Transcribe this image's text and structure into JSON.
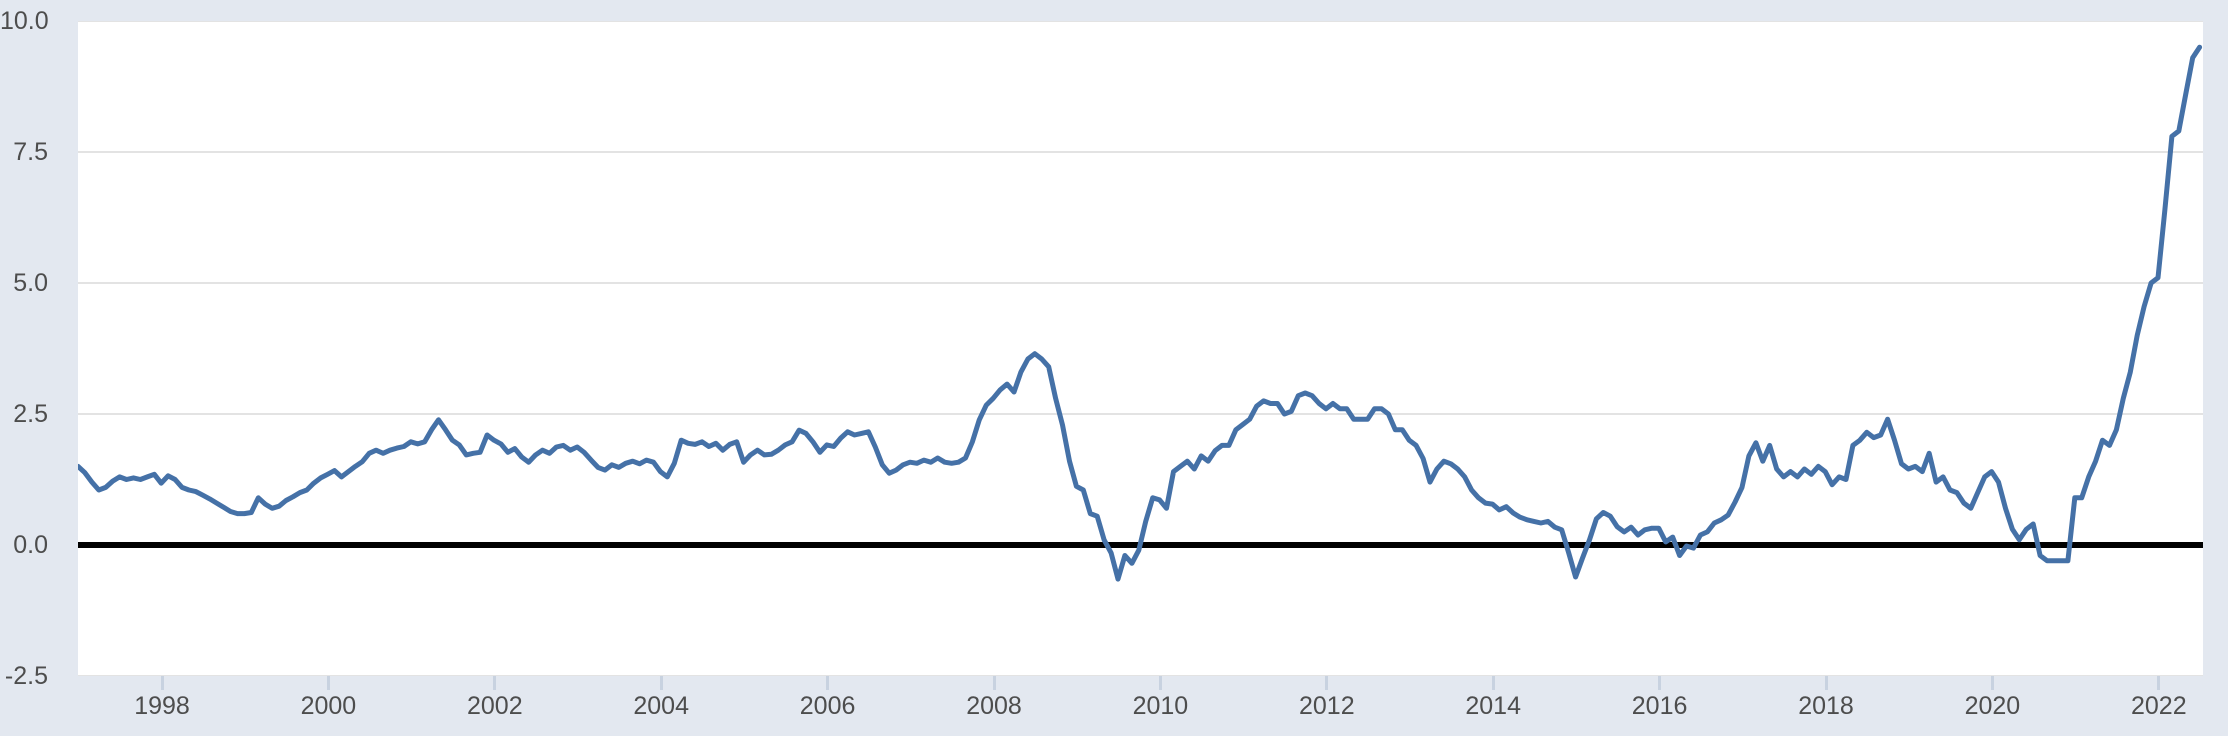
{
  "colors": {
    "background": "#e3e8f0",
    "plot_background": "#ffffff",
    "gridline": "#e3e3e3",
    "zero_line": "#000000",
    "series_line": "#4571a7",
    "tick_mark": "#c8d2e0",
    "axis_label": "#4d4d4d"
  },
  "chart_data": {
    "type": "line",
    "title": "",
    "xlabel": "",
    "ylabel": "",
    "legend": "none",
    "grid": true,
    "zero_baseline": true,
    "x_unit": "month",
    "x_start": "1997-01",
    "x_end": "2022-07",
    "xlim": [
      1997.0,
      2022.58
    ],
    "ylim": [
      -2.5,
      10.0
    ],
    "y_ticks": [
      {
        "label": "10.0",
        "value": 10.0
      },
      {
        "label": "7.5",
        "value": 7.5
      },
      {
        "label": "5.0",
        "value": 5.0
      },
      {
        "label": "2.5",
        "value": 2.5
      },
      {
        "label": "0.0",
        "value": 0.0
      },
      {
        "label": "-2.5",
        "value": -2.5
      }
    ],
    "x_ticks": [
      {
        "label": "1998",
        "year": 1998
      },
      {
        "label": "2000",
        "year": 2000
      },
      {
        "label": "2002",
        "year": 2002
      },
      {
        "label": "2004",
        "year": 2004
      },
      {
        "label": "2006",
        "year": 2006
      },
      {
        "label": "2008",
        "year": 2008
      },
      {
        "label": "2010",
        "year": 2010
      },
      {
        "label": "2012",
        "year": 2012
      },
      {
        "label": "2014",
        "year": 2014
      },
      {
        "label": "2016",
        "year": 2016
      },
      {
        "label": "2018",
        "year": 2018
      },
      {
        "label": "2020",
        "year": 2020
      },
      {
        "label": "2022",
        "year": 2022
      }
    ],
    "values": [
      1.5,
      1.38,
      1.2,
      1.05,
      1.1,
      1.22,
      1.3,
      1.25,
      1.28,
      1.25,
      1.3,
      1.35,
      1.18,
      1.32,
      1.25,
      1.1,
      1.05,
      1.02,
      0.95,
      0.88,
      0.8,
      0.72,
      0.64,
      0.6,
      0.6,
      0.62,
      0.9,
      0.78,
      0.7,
      0.74,
      0.85,
      0.92,
      1.0,
      1.05,
      1.18,
      1.28,
      1.35,
      1.42,
      1.3,
      1.4,
      1.5,
      1.59,
      1.75,
      1.81,
      1.75,
      1.81,
      1.85,
      1.88,
      1.97,
      1.93,
      1.97,
      2.2,
      2.39,
      2.2,
      2.0,
      1.91,
      1.72,
      1.75,
      1.77,
      2.1,
      2.0,
      1.93,
      1.77,
      1.84,
      1.68,
      1.58,
      1.72,
      1.81,
      1.75,
      1.87,
      1.9,
      1.81,
      1.87,
      1.77,
      1.62,
      1.48,
      1.43,
      1.53,
      1.48,
      1.56,
      1.6,
      1.55,
      1.62,
      1.58,
      1.4,
      1.3,
      1.56,
      2.0,
      1.94,
      1.92,
      1.97,
      1.88,
      1.94,
      1.81,
      1.92,
      1.97,
      1.58,
      1.72,
      1.81,
      1.72,
      1.73,
      1.81,
      1.91,
      1.97,
      2.19,
      2.13,
      1.97,
      1.77,
      1.91,
      1.88,
      2.04,
      2.16,
      2.1,
      2.13,
      2.16,
      1.87,
      1.53,
      1.37,
      1.43,
      1.53,
      1.58,
      1.56,
      1.62,
      1.58,
      1.66,
      1.58,
      1.56,
      1.58,
      1.66,
      1.97,
      2.39,
      2.67,
      2.8,
      2.96,
      3.07,
      2.92,
      3.3,
      3.55,
      3.65,
      3.55,
      3.4,
      2.8,
      2.29,
      1.6,
      1.12,
      1.05,
      0.6,
      0.55,
      0.1,
      -0.15,
      -0.65,
      -0.2,
      -0.35,
      -0.1,
      0.45,
      0.9,
      0.86,
      0.7,
      1.4,
      1.5,
      1.6,
      1.45,
      1.7,
      1.6,
      1.8,
      1.9,
      1.9,
      2.2,
      2.3,
      2.4,
      2.65,
      2.75,
      2.7,
      2.7,
      2.5,
      2.55,
      2.85,
      2.9,
      2.85,
      2.7,
      2.6,
      2.7,
      2.6,
      2.6,
      2.4,
      2.4,
      2.4,
      2.6,
      2.6,
      2.5,
      2.2,
      2.2,
      2.0,
      1.9,
      1.65,
      1.2,
      1.45,
      1.6,
      1.55,
      1.45,
      1.3,
      1.05,
      0.9,
      0.8,
      0.78,
      0.67,
      0.73,
      0.61,
      0.53,
      0.48,
      0.45,
      0.42,
      0.45,
      0.34,
      0.29,
      -0.15,
      -0.61,
      -0.25,
      0.1,
      0.5,
      0.62,
      0.55,
      0.35,
      0.25,
      0.34,
      0.19,
      0.29,
      0.32,
      0.32,
      0.06,
      0.15,
      -0.2,
      -0.02,
      -0.06,
      0.19,
      0.25,
      0.42,
      0.48,
      0.57,
      0.82,
      1.1,
      1.7,
      1.95,
      1.6,
      1.9,
      1.45,
      1.3,
      1.4,
      1.3,
      1.45,
      1.35,
      1.5,
      1.4,
      1.15,
      1.3,
      1.25,
      1.9,
      2.0,
      2.15,
      2.05,
      2.1,
      2.4,
      2.0,
      1.55,
      1.45,
      1.5,
      1.4,
      1.75,
      1.2,
      1.3,
      1.05,
      1.0,
      0.8,
      0.7,
      1.0,
      1.3,
      1.4,
      1.2,
      0.7,
      0.3,
      0.1,
      0.3,
      0.4,
      -0.2,
      -0.3,
      -0.3,
      -0.3,
      -0.3,
      0.9,
      0.9,
      1.3,
      1.6,
      2.0,
      1.9,
      2.2,
      2.8,
      3.3,
      4.0,
      4.55,
      5.0,
      5.1,
      6.4,
      7.8,
      7.9,
      8.6,
      9.3,
      9.5
    ]
  }
}
